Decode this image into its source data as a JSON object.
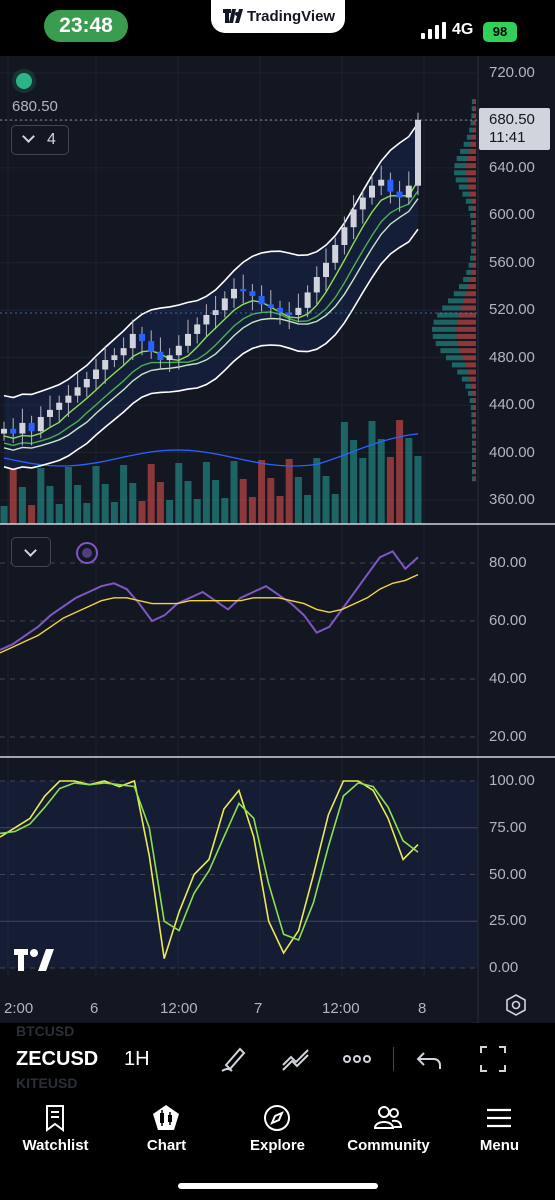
{
  "status_bar": {
    "time": "23:48",
    "app_name": "TradingView",
    "network": "4G",
    "battery": "98"
  },
  "chart": {
    "last_price_label": "680.50",
    "collapse_count": "4",
    "price_tag_value": "680.50",
    "price_tag_timer": "11:41",
    "price_axis": [
      "720.00",
      "680.00",
      "640.00",
      "600.00",
      "560.00",
      "520.00",
      "480.00",
      "440.00",
      "400.00",
      "360.00"
    ],
    "rsi_axis": [
      "80.00",
      "60.00",
      "40.00",
      "20.00"
    ],
    "stoch_axis": [
      "100.00",
      "75.00",
      "50.00",
      "25.00",
      "0.00"
    ],
    "time_axis": [
      "2:00",
      "6",
      "12:00",
      "7",
      "12:00",
      "8"
    ],
    "colors": {
      "up": "#26a69a",
      "down": "#ef5350",
      "rsi": "#7e57c2",
      "rsi_ma": "#f5d442",
      "stoch_k": "#e8ec52",
      "stoch_d": "#8de04f",
      "bg": "#131722"
    }
  },
  "chart_data": [
    {
      "type": "candlestick",
      "title": "",
      "symbol": "ZECUSD",
      "interval": "1H",
      "ylim": [
        340,
        730
      ],
      "x": [
        "2:00",
        "6",
        "12:00",
        "7",
        "12:00",
        "8"
      ],
      "last_close": 680.5,
      "close_path": [
        420,
        416,
        425,
        418,
        430,
        436,
        442,
        448,
        455,
        462,
        470,
        478,
        482,
        488,
        500,
        494,
        485,
        478,
        482,
        490,
        500,
        508,
        516,
        520,
        530,
        538,
        536,
        532,
        525,
        522,
        518,
        516,
        522,
        535,
        548,
        560,
        575,
        590,
        605,
        615,
        625,
        630,
        620,
        615,
        625,
        680.5
      ]
    },
    {
      "type": "line",
      "title": "",
      "ylim": [
        10,
        90
      ],
      "series": [
        {
          "values": [
            50,
            52,
            55,
            58,
            62,
            65,
            68,
            70,
            72,
            73,
            71,
            66,
            60,
            62,
            66,
            68,
            70,
            67,
            64,
            68,
            70,
            72,
            69,
            66,
            62,
            56,
            58,
            64,
            70,
            76,
            82,
            84,
            78,
            82
          ]
        },
        {
          "values": [
            49,
            51,
            53,
            55,
            58,
            61,
            63,
            65,
            67,
            68,
            68,
            67,
            66,
            66,
            66,
            67,
            67,
            67,
            67,
            67,
            68,
            68,
            68,
            67,
            66,
            64,
            63,
            64,
            66,
            68,
            71,
            73,
            74,
            76
          ]
        }
      ]
    },
    {
      "type": "line",
      "title": "",
      "ylim": [
        -5,
        105
      ],
      "series": [
        {
          "values": [
            70,
            75,
            80,
            92,
            100,
            100,
            98,
            100,
            97,
            100,
            60,
            5,
            30,
            50,
            58,
            85,
            95,
            70,
            25,
            8,
            20,
            50,
            82,
            100,
            100,
            95,
            80,
            58,
            66
          ]
        },
        {
          "values": [
            72,
            73,
            77,
            86,
            96,
            99,
            98,
            99,
            98,
            97,
            75,
            25,
            20,
            40,
            52,
            70,
            88,
            80,
            45,
            18,
            15,
            35,
            65,
            92,
            99,
            97,
            86,
            68,
            62
          ]
        }
      ]
    }
  ],
  "toolbar": {
    "ghost_above": "BTCUSD",
    "symbol": "ZECUSD",
    "ghost_below": "KITEUSD",
    "interval": "1H"
  },
  "bottom_nav": {
    "items": [
      {
        "label": "Watchlist",
        "icon": "bookmark-icon"
      },
      {
        "label": "Chart",
        "icon": "candles-icon"
      },
      {
        "label": "Explore",
        "icon": "compass-icon"
      },
      {
        "label": "Community",
        "icon": "people-icon"
      },
      {
        "label": "Menu",
        "icon": "hamburger-icon"
      }
    ]
  }
}
